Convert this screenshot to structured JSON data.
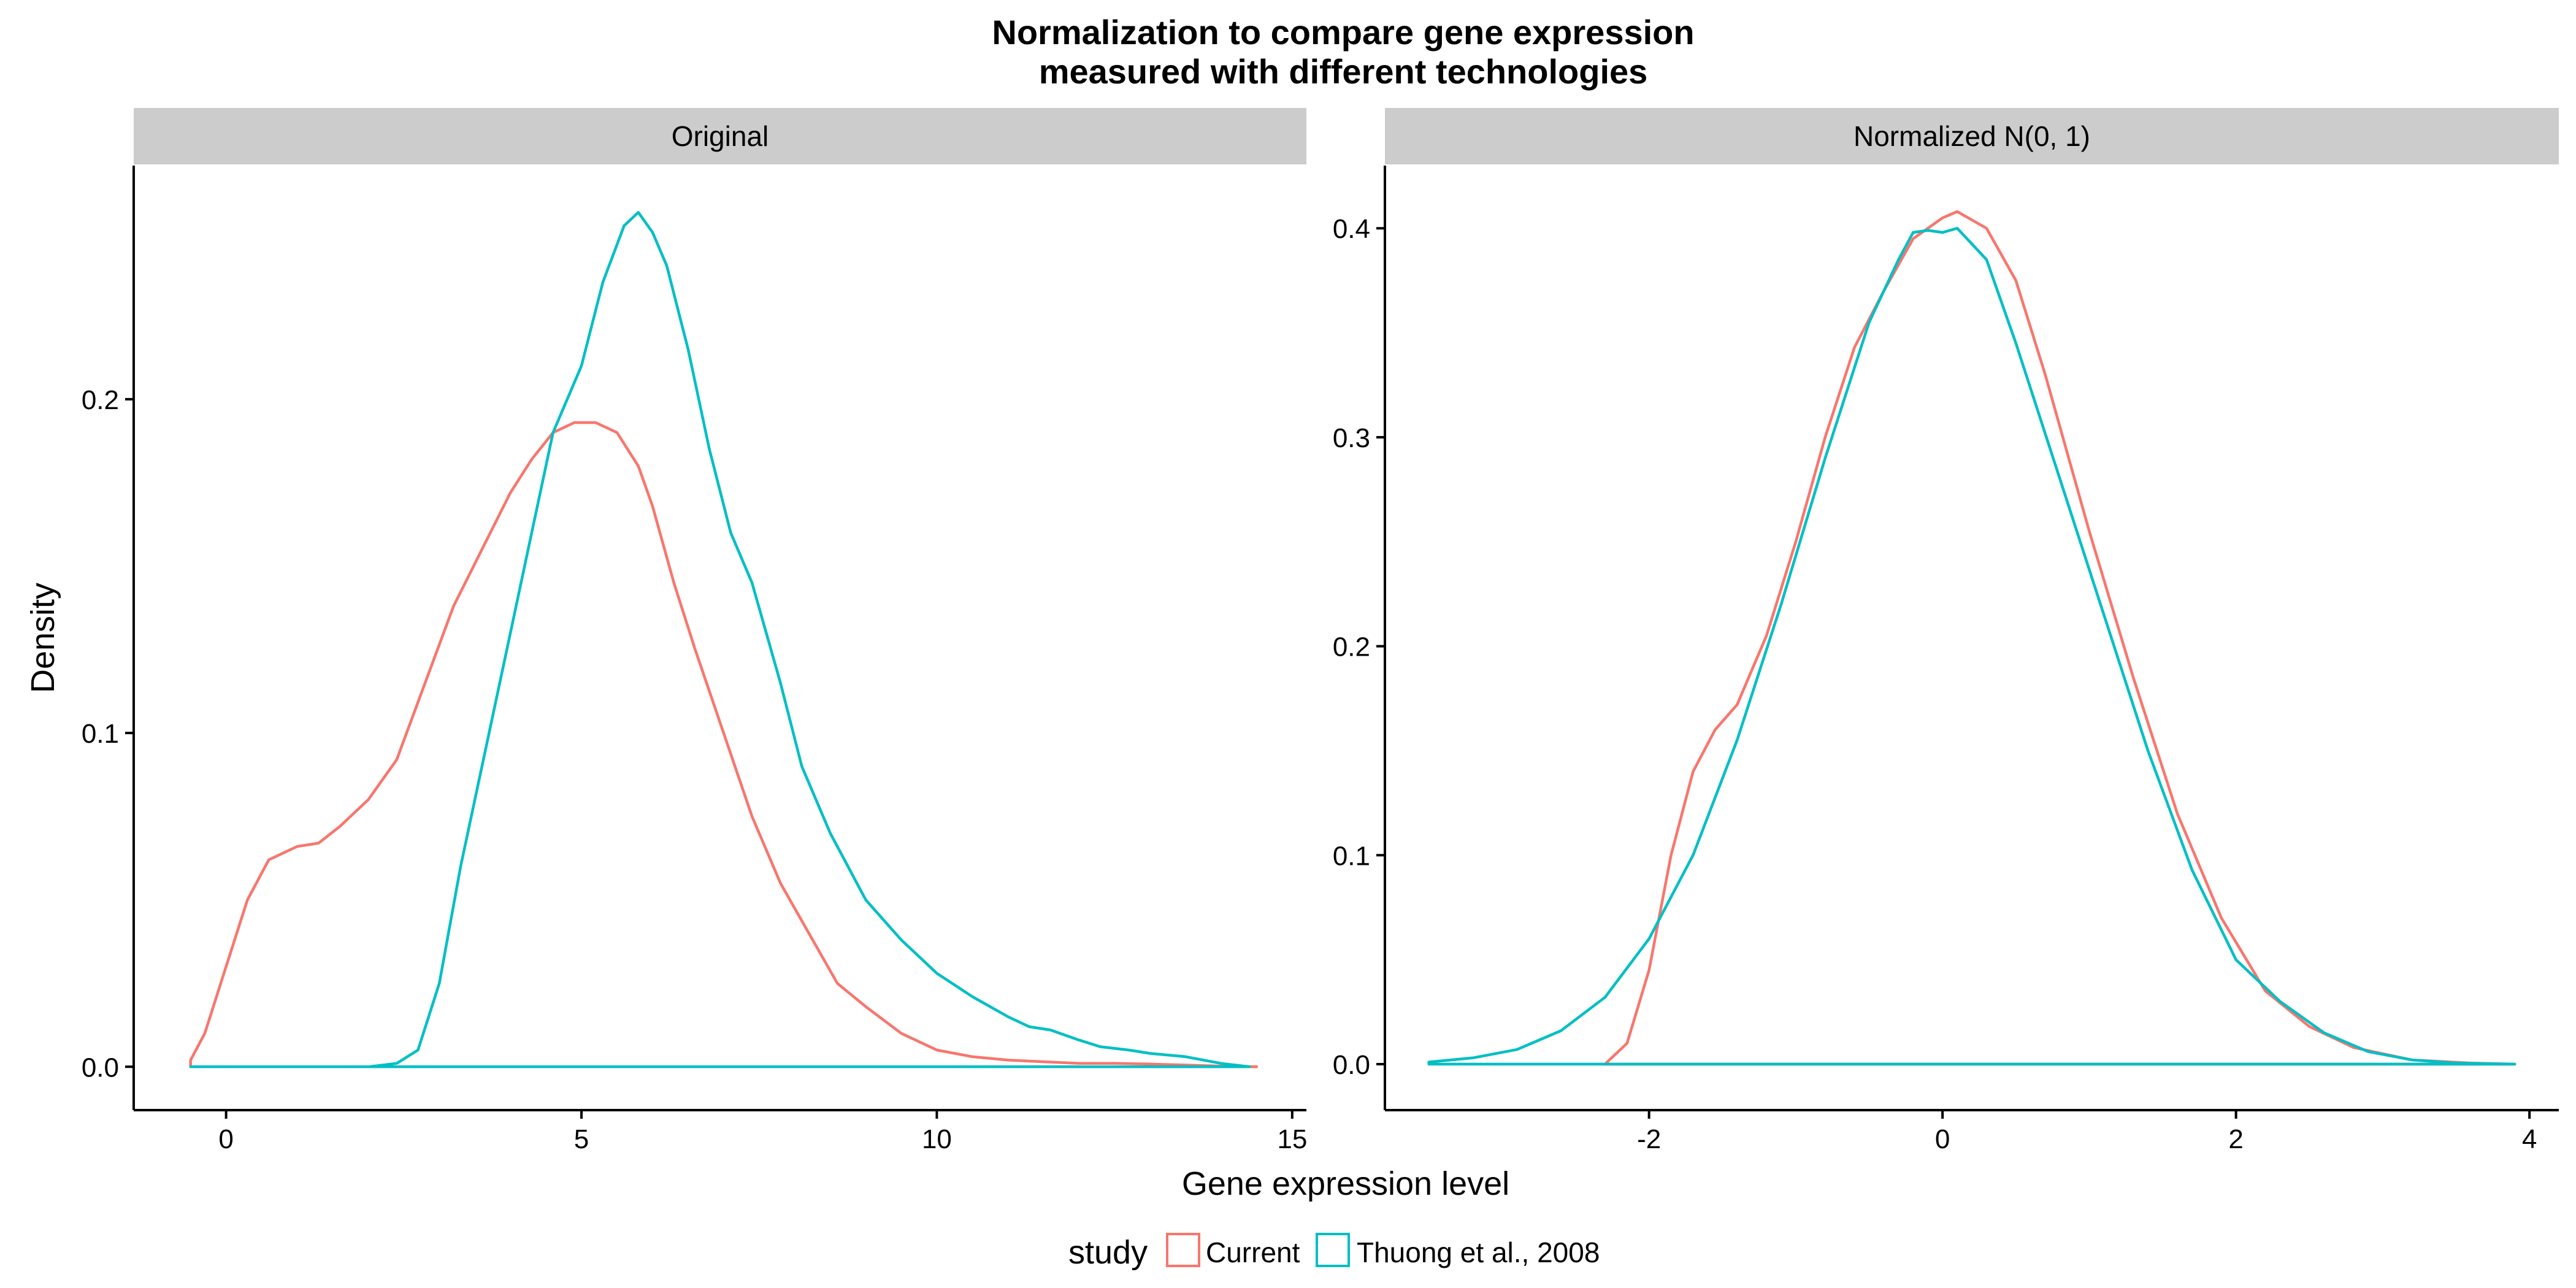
{
  "chart_data": {
    "type": "line",
    "title": "Normalization to compare gene expression\nmeasured with different technologies",
    "title_lines": [
      "Normalization to compare gene expression",
      "measured with different technologies"
    ],
    "xlabel": "Gene expression level",
    "ylabel": "Density",
    "grid": false,
    "legend": {
      "title": "study",
      "placement": "bottom",
      "entries": [
        {
          "label": "Current",
          "color": "#F8766D"
        },
        {
          "label": "Thuong et al., 2008",
          "color": "#00BFC4"
        }
      ]
    },
    "panels": [
      {
        "strip": "Original",
        "xlim": [
          -1.3,
          15.2
        ],
        "ylim": [
          -0.013,
          0.27
        ],
        "xticks": [
          0,
          5,
          10,
          15
        ],
        "xtick_labels": [
          "0",
          "5",
          "10",
          "15"
        ],
        "yticks": [
          0.0,
          0.1,
          0.2
        ],
        "ytick_labels": [
          "0.0",
          "0.1",
          "0.2"
        ],
        "series": [
          {
            "name": "Current",
            "color": "#F8766D",
            "x": [
              -0.5,
              -0.3,
              0,
              0.3,
              0.6,
              1,
              1.3,
              1.6,
              2,
              2.4,
              2.8,
              3.2,
              3.6,
              4,
              4.3,
              4.6,
              4.9,
              5.2,
              5.5,
              5.8,
              6,
              6.3,
              6.6,
              7,
              7.4,
              7.8,
              8.2,
              8.6,
              9,
              9.5,
              10,
              10.5,
              11,
              11.5,
              12,
              12.5,
              13,
              13.5,
              14,
              14.5
            ],
            "y": [
              0.002,
              0.01,
              0.03,
              0.05,
              0.062,
              0.066,
              0.067,
              0.072,
              0.08,
              0.092,
              0.115,
              0.138,
              0.155,
              0.172,
              0.182,
              0.19,
              0.193,
              0.193,
              0.19,
              0.18,
              0.168,
              0.145,
              0.125,
              0.1,
              0.075,
              0.055,
              0.04,
              0.025,
              0.018,
              0.01,
              0.005,
              0.003,
              0.002,
              0.0015,
              0.001,
              0.001,
              0.0008,
              0.0005,
              0.0002,
              0.0
            ]
          },
          {
            "name": "Thuong et al., 2008",
            "color": "#00BFC4",
            "x": [
              -0.5,
              2,
              2.4,
              2.7,
              3,
              3.3,
              3.7,
              4,
              4.3,
              4.6,
              5,
              5.3,
              5.6,
              5.8,
              6,
              6.2,
              6.5,
              6.8,
              7.1,
              7.4,
              7.8,
              8.1,
              8.5,
              9,
              9.5,
              10,
              10.5,
              11,
              11.3,
              11.6,
              12,
              12.3,
              12.7,
              13,
              13.5,
              14,
              14.4
            ],
            "y": [
              0,
              0,
              0.001,
              0.005,
              0.025,
              0.06,
              0.1,
              0.13,
              0.16,
              0.19,
              0.21,
              0.235,
              0.252,
              0.256,
              0.25,
              0.24,
              0.215,
              0.185,
              0.16,
              0.145,
              0.115,
              0.09,
              0.07,
              0.05,
              0.038,
              0.028,
              0.021,
              0.015,
              0.012,
              0.011,
              0.008,
              0.006,
              0.005,
              0.004,
              0.003,
              0.001,
              0.0
            ]
          }
        ]
      },
      {
        "strip": "Normalized N(0, 1)",
        "xlim": [
          -3.8,
          4.2
        ],
        "ylim": [
          -0.022,
          0.43
        ],
        "xticks": [
          -2,
          0,
          2,
          4
        ],
        "xtick_labels": [
          "-2",
          "0",
          "2",
          "4"
        ],
        "yticks": [
          0.0,
          0.1,
          0.2,
          0.3,
          0.4
        ],
        "ytick_labels": [
          "0.0",
          "0.1",
          "0.2",
          "0.3",
          "0.4"
        ],
        "series": [
          {
            "name": "Current",
            "color": "#F8766D",
            "x": [
              -2.3,
              -2.15,
              -2,
              -1.85,
              -1.7,
              -1.55,
              -1.4,
              -1.2,
              -1,
              -0.8,
              -0.6,
              -0.4,
              -0.2,
              0,
              0.1,
              0.3,
              0.5,
              0.7,
              1,
              1.3,
              1.6,
              1.9,
              2.2,
              2.5,
              2.8,
              3.2,
              3.6,
              3.9
            ],
            "y": [
              0,
              0.01,
              0.045,
              0.1,
              0.14,
              0.16,
              0.172,
              0.205,
              0.25,
              0.3,
              0.343,
              0.37,
              0.395,
              0.405,
              0.408,
              0.4,
              0.375,
              0.33,
              0.255,
              0.185,
              0.12,
              0.07,
              0.035,
              0.018,
              0.008,
              0.002,
              0.0005,
              0.0
            ]
          },
          {
            "name": "Thuong et al., 2008",
            "color": "#00BFC4",
            "x": [
              -3.5,
              -3.2,
              -2.9,
              -2.6,
              -2.3,
              -2,
              -1.7,
              -1.4,
              -1.1,
              -0.8,
              -0.5,
              -0.3,
              -0.2,
              -0.1,
              0,
              0.1,
              0.3,
              0.5,
              0.8,
              1.1,
              1.4,
              1.7,
              2,
              2.3,
              2.6,
              2.9,
              3.2,
              3.5,
              3.9
            ],
            "y": [
              0.001,
              0.003,
              0.007,
              0.016,
              0.032,
              0.06,
              0.1,
              0.155,
              0.22,
              0.29,
              0.355,
              0.385,
              0.398,
              0.399,
              0.398,
              0.4,
              0.385,
              0.345,
              0.28,
              0.215,
              0.15,
              0.093,
              0.05,
              0.03,
              0.015,
              0.006,
              0.002,
              0.0005,
              0.0
            ]
          }
        ]
      }
    ]
  }
}
